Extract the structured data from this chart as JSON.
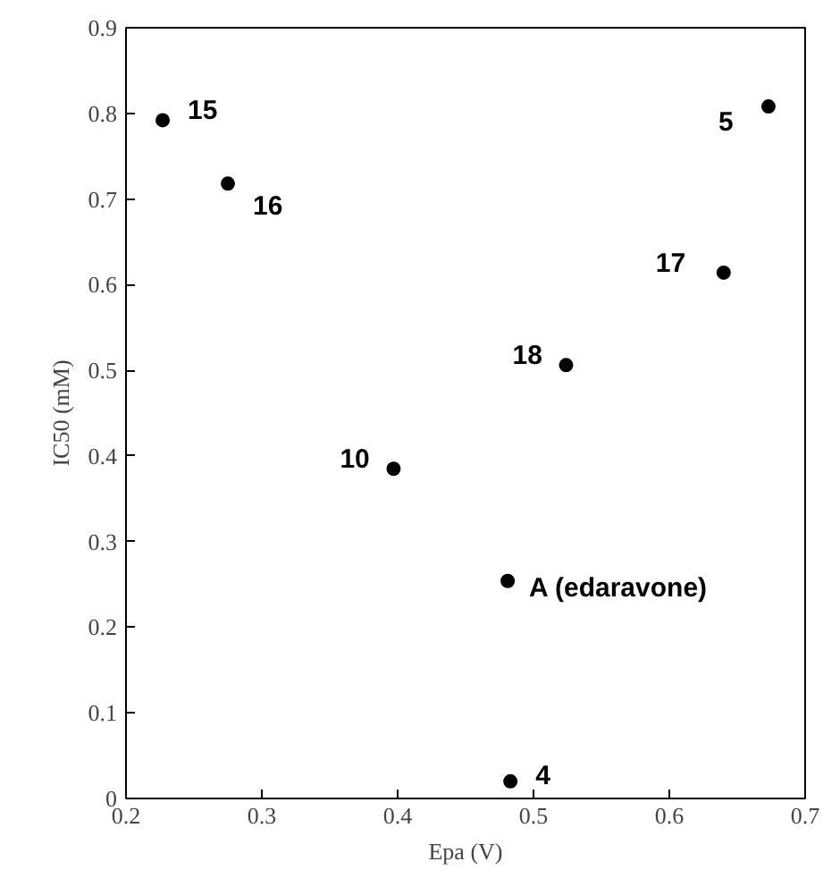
{
  "chart_data": {
    "type": "scatter",
    "xlabel": "Epa (V)",
    "ylabel": "IC50 (mM)",
    "x": [
      0.227,
      0.275,
      0.397,
      0.481,
      0.483,
      0.524,
      0.64,
      0.673
    ],
    "series": [
      {
        "color": "#000000",
        "values": [
          0.792,
          0.718,
          0.385,
          0.254,
          0.02,
          0.506,
          0.614,
          0.808
        ]
      }
    ],
    "xlim": [
      0.2,
      0.7
    ],
    "ylim": [
      0,
      0.9
    ],
    "xticks": [
      0.2,
      0.3,
      0.4,
      0.5,
      0.6,
      0.7
    ],
    "yticks": [
      0,
      0.1,
      0.2,
      0.3,
      0.4,
      0.5,
      0.6,
      0.7,
      0.8,
      0.9
    ],
    "marker": "circle",
    "annotations": [
      {
        "text": "15",
        "x": 0.227,
        "y": 0.792
      },
      {
        "text": "16",
        "x": 0.275,
        "y": 0.718
      },
      {
        "text": "10",
        "x": 0.397,
        "y": 0.385
      },
      {
        "text": "A (edaravone)",
        "x": 0.481,
        "y": 0.254
      },
      {
        "text": "4",
        "x": 0.483,
        "y": 0.02
      },
      {
        "text": "18",
        "x": 0.524,
        "y": 0.506
      },
      {
        "text": "17",
        "x": 0.64,
        "y": 0.614
      },
      {
        "text": "5",
        "x": 0.673,
        "y": 0.808
      }
    ]
  }
}
